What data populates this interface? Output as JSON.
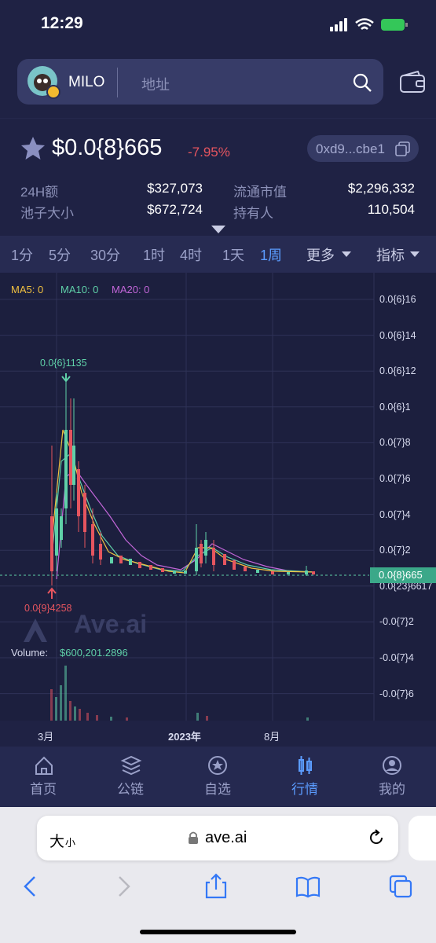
{
  "status_bar": {
    "time": "12:29"
  },
  "search": {
    "token": "MILO",
    "placeholder": "地址"
  },
  "price": {
    "value": "$0.0{8}665",
    "change": "-7.95%",
    "address": "0xd9...cbe1"
  },
  "stats": [
    {
      "label": "24H额",
      "value": "$327,073"
    },
    {
      "label": "流通市值",
      "value": "$2,296,332"
    },
    {
      "label": "池子大小",
      "value": "$672,724"
    },
    {
      "label": "持有人",
      "value": "110,504"
    }
  ],
  "timeframes": [
    "1分",
    "5分",
    "30分",
    "1时",
    "4时",
    "1天",
    "1周"
  ],
  "more": "更多",
  "indicators": "指标",
  "chart": {
    "ma": [
      "MA5: 0",
      "MA10: 0",
      "MA20: 0"
    ],
    "y_labels": [
      "0.0{6}16",
      "0.0{6}14",
      "0.0{6}12",
      "0.0{6}1",
      "0.0{7}8",
      "0.0{7}6",
      "0.0{7}4",
      "0.0{7}2",
      "0.0{23}6617",
      "-0.0{7}2",
      "-0.0{7}4",
      "-0.0{7}6"
    ],
    "current": "0.0{8}665",
    "high": "0.0{6}1135",
    "low": "0.0{9}4258",
    "watermark": "Ave.ai",
    "volume_label": "Volume:",
    "volume_value": "$600,201.2896",
    "x_labels": [
      "3月",
      "2023年",
      "8月"
    ]
  },
  "nav": [
    "首页",
    "公链",
    "自选",
    "行情",
    "我的"
  ],
  "browser": {
    "text_size_big": "大",
    "text_size_small": "小",
    "url": "ave.ai"
  }
}
